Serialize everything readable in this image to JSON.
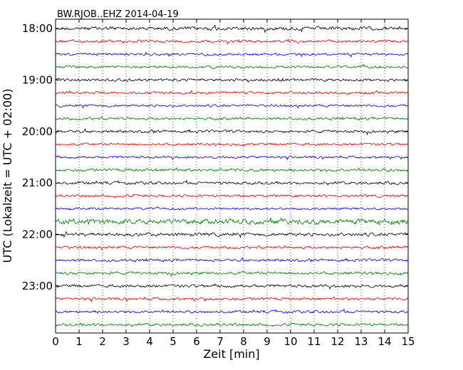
{
  "chart_data": {
    "type": "line",
    "title": "BW.RJOB..EHZ 2014-04-19",
    "xlabel": "Zeit  [min]",
    "ylabel": "UTC (Lokalzeit = UTC + 02:00)",
    "xlim": [
      0,
      15
    ],
    "x_ticks": [
      0,
      1,
      2,
      3,
      4,
      5,
      6,
      7,
      8,
      9,
      10,
      11,
      12,
      13,
      14,
      15
    ],
    "y_tick_labels": [
      "18:00",
      "19:00",
      "20:00",
      "21:00",
      "22:00",
      "23:00"
    ],
    "grid": "vertical dotted",
    "series_colors": [
      "#000000",
      "#ff0000",
      "#0000ff",
      "#008000"
    ],
    "series": [
      {
        "start": "18:00",
        "amplitude": 0.2
      },
      {
        "start": "18:15",
        "amplitude": 0.15
      },
      {
        "start": "18:30",
        "amplitude": 0.13
      },
      {
        "start": "18:45",
        "amplitude": 0.14
      },
      {
        "start": "19:00",
        "amplitude": 0.15
      },
      {
        "start": "19:15",
        "amplitude": 0.14
      },
      {
        "start": "19:30",
        "amplitude": 0.13
      },
      {
        "start": "19:45",
        "amplitude": 0.15
      },
      {
        "start": "20:00",
        "amplitude": 0.15
      },
      {
        "start": "20:15",
        "amplitude": 0.14
      },
      {
        "start": "20:30",
        "amplitude": 0.13
      },
      {
        "start": "20:45",
        "amplitude": 0.17
      },
      {
        "start": "21:00",
        "amplitude": 0.15
      },
      {
        "start": "21:15",
        "amplitude": 0.14
      },
      {
        "start": "21:30",
        "amplitude": 0.13
      },
      {
        "start": "21:45",
        "amplitude": 0.28
      },
      {
        "start": "22:00",
        "amplitude": 0.18
      },
      {
        "start": "22:15",
        "amplitude": 0.15
      },
      {
        "start": "22:30",
        "amplitude": 0.15
      },
      {
        "start": "22:45",
        "amplitude": 0.16
      },
      {
        "start": "23:00",
        "amplitude": 0.16
      },
      {
        "start": "23:15",
        "amplitude": 0.15
      },
      {
        "start": "23:30",
        "amplitude": 0.15
      },
      {
        "start": "23:45",
        "amplitude": 0.15
      }
    ]
  }
}
